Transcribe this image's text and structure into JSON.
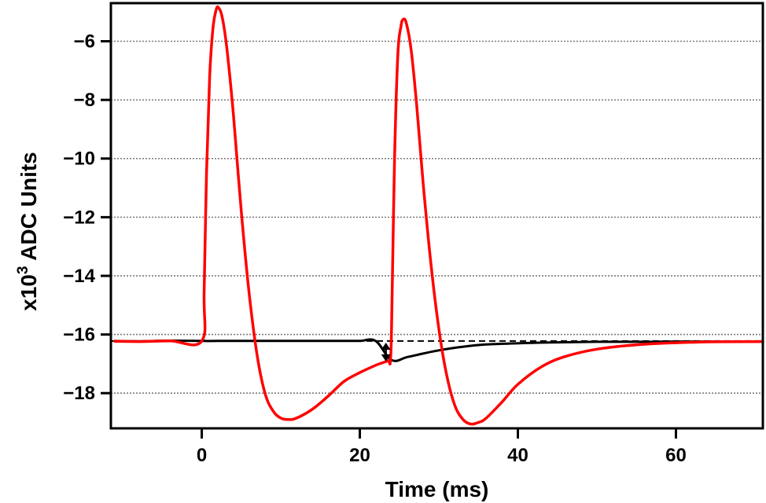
{
  "chart_data": {
    "type": "line",
    "xlabel": "Time (ms)",
    "ylabel": {
      "prefix": "x10",
      "superscript": "3",
      "suffix": " ADC Units"
    },
    "xlim": [
      -11.5,
      71
    ],
    "ylim": [
      -19.2,
      -4.7
    ],
    "x_ticks": [
      0,
      20,
      40,
      60
    ],
    "y_ticks": [
      -18,
      -16,
      -14,
      -12,
      -10,
      -8,
      -6
    ],
    "tick_labels": {
      "x": [
        "0",
        "20",
        "40",
        "60"
      ],
      "y": [
        "−18",
        "−16",
        "−14",
        "−12",
        "−10",
        "−8",
        "−6"
      ]
    },
    "grid": {
      "horizontal": true,
      "style": "dotted",
      "color": "#7a7a7a"
    },
    "baseline": {
      "y": -16.22,
      "style": "dashed",
      "color": "#000000"
    },
    "annotation": {
      "type": "double-arrow",
      "x": 23.3,
      "y_from": -16.28,
      "y_to": -16.92
    },
    "series": [
      {
        "color": "#000000",
        "x": [
          -11,
          -8,
          -4,
          0,
          2,
          6,
          10,
          14,
          18,
          20,
          22,
          24,
          26,
          28,
          30,
          33,
          36,
          40,
          44,
          50,
          56,
          60,
          66,
          71
        ],
        "y": [
          -16.22,
          -16.23,
          -16.21,
          -16.22,
          -16.22,
          -16.22,
          -16.22,
          -16.22,
          -16.22,
          -16.22,
          -16.22,
          -16.87,
          -16.77,
          -16.65,
          -16.54,
          -16.42,
          -16.34,
          -16.3,
          -16.27,
          -16.25,
          -16.25,
          -16.24,
          -16.24,
          -16.24
        ]
      },
      {
        "color": "#ff0000",
        "x": [
          -11,
          -8,
          -4,
          0,
          0.3,
          0.6,
          1.0,
          1.4,
          1.8,
          2.1,
          2.6,
          3.2,
          4,
          5,
          6,
          7,
          8,
          9,
          10,
          11,
          12,
          14,
          16,
          18,
          20,
          22,
          23.5,
          23.9,
          24.1,
          24.4,
          24.8,
          25.2,
          25.5,
          25.9,
          26.5,
          27.2,
          28,
          29,
          30,
          31,
          32,
          33,
          34,
          35,
          36,
          38,
          40,
          43,
          46,
          50,
          55,
          60,
          65,
          71
        ],
        "y": [
          -16.23,
          -16.24,
          -16.22,
          -16.22,
          -14.5,
          -10.5,
          -7.2,
          -5.6,
          -4.95,
          -4.85,
          -5.2,
          -6.3,
          -8.5,
          -11.8,
          -14.6,
          -16.7,
          -18.0,
          -18.6,
          -18.85,
          -18.9,
          -18.85,
          -18.55,
          -18.1,
          -17.6,
          -17.3,
          -17.05,
          -16.9,
          -16.8,
          -14.5,
          -10.0,
          -6.5,
          -5.5,
          -5.25,
          -5.4,
          -6.3,
          -8.2,
          -10.8,
          -13.6,
          -15.8,
          -17.4,
          -18.4,
          -18.88,
          -19.05,
          -19.0,
          -18.85,
          -18.3,
          -17.7,
          -17.1,
          -16.75,
          -16.5,
          -16.35,
          -16.28,
          -16.25,
          -16.24
        ]
      }
    ]
  }
}
